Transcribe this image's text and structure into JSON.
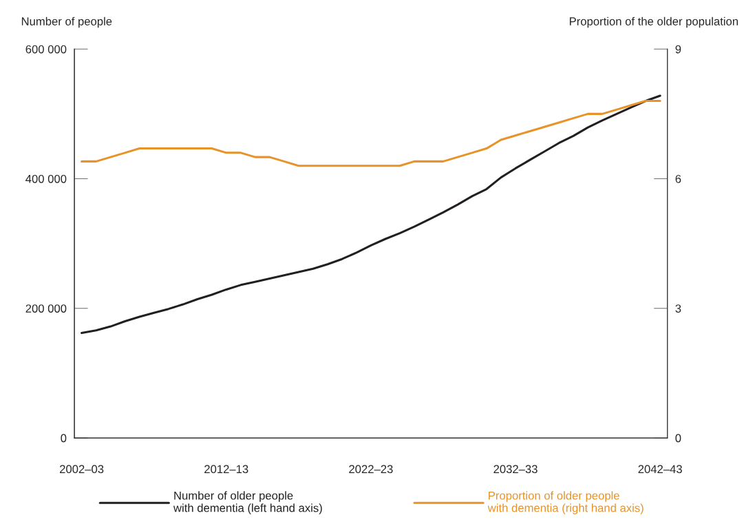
{
  "chart_data": {
    "type": "line",
    "ylabel": "Number of people",
    "y2label": "Proportion of the older population",
    "categories": [
      "2002–03",
      null,
      null,
      null,
      null,
      null,
      null,
      null,
      null,
      null,
      "2012–13",
      null,
      null,
      null,
      null,
      null,
      null,
      null,
      null,
      null,
      "2022–23",
      null,
      null,
      null,
      null,
      null,
      null,
      null,
      null,
      null,
      "2032–33",
      null,
      null,
      null,
      null,
      null,
      null,
      null,
      null,
      null,
      "2042–43"
    ],
    "series": [
      {
        "name": "Number of older people\nwith dementia (left hand axis)",
        "color": "#231f20",
        "values": [
          162000,
          166000,
          172000,
          180000,
          187000,
          193000,
          199000,
          206000,
          214000,
          221000,
          229000,
          236000,
          241000,
          246000,
          251000,
          256000,
          261000,
          268000,
          276000,
          286000,
          297000,
          307000,
          316000,
          326000,
          337000,
          348000,
          360000,
          373000,
          384000,
          402000,
          416000,
          429000,
          442000,
          455000,
          466000,
          479000,
          490000,
          500000,
          510000,
          520000,
          528000
        ]
      },
      {
        "name": "Proportion of older people\nwith dementia (right hand axis)",
        "color": "#e8922a",
        "axis": "y2",
        "values": [
          6.4,
          6.4,
          6.5,
          6.6,
          6.7,
          6.7,
          6.7,
          6.7,
          6.7,
          6.7,
          6.6,
          6.6,
          6.5,
          6.5,
          6.4,
          6.3,
          6.3,
          6.3,
          6.3,
          6.3,
          6.3,
          6.3,
          6.3,
          6.4,
          6.4,
          6.4,
          6.5,
          6.6,
          6.7,
          6.9,
          7.0,
          7.1,
          7.2,
          7.3,
          7.4,
          7.5,
          7.5,
          7.6,
          7.7,
          7.8,
          7.8
        ]
      }
    ],
    "ylim": [
      0,
      600000
    ],
    "yticks": [
      {
        "value": 0,
        "label": "0"
      },
      {
        "value": 200000,
        "label": "200 000"
      },
      {
        "value": 400000,
        "label": "400 000"
      },
      {
        "value": 600000,
        "label": "600 000"
      }
    ],
    "y2lim": [
      0,
      9
    ],
    "y2ticks": [
      0,
      3,
      6,
      9
    ],
    "grid": false,
    "legend": "bottom",
    "marker": "none",
    "line_style": "solid"
  }
}
